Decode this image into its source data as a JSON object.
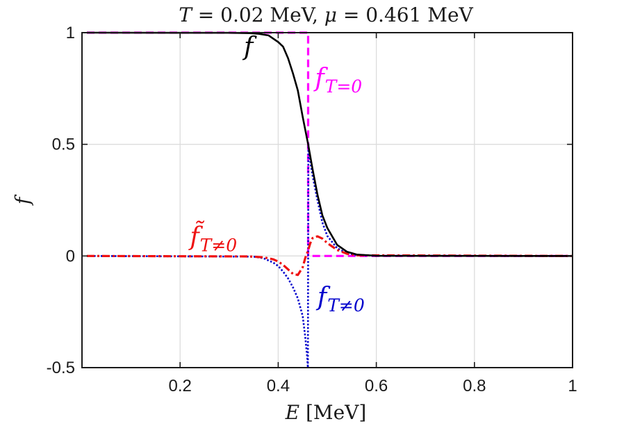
{
  "colors": {
    "f": "#000000",
    "f_T0": "#ff00ff",
    "f_Tneq0": "#0000cc",
    "ftilde_Tneq0": "#ee1111",
    "grid": "#dcdcdc",
    "axes": "#1a1a1a"
  },
  "chart_data": {
    "type": "line",
    "title": {
      "T_symbol": "T",
      "T_text": " = 0.02 MeV, ",
      "mu_symbol": "μ",
      "mu_text": " = 0.461 MeV"
    },
    "xlabel": {
      "symbol": "E",
      "unit": " [MeV]"
    },
    "ylabel": "f",
    "xlim": [
      0,
      1
    ],
    "ylim": [
      -0.5,
      1
    ],
    "grid": true,
    "xticks": [
      0.2,
      0.4,
      0.6,
      0.8,
      1
    ],
    "xtick_labels": [
      "0.2",
      "0.4",
      "0.6",
      "0.8",
      "1"
    ],
    "yticks": [
      -0.5,
      0,
      0.5,
      1
    ],
    "ytick_labels": [
      "-0.5",
      "0",
      "0.5",
      "1"
    ],
    "parameters": {
      "T": 0.02,
      "mu": 0.461
    },
    "annotations": [
      {
        "series": "f",
        "base": "f",
        "sub": "",
        "at": [
          0.33,
          0.9
        ]
      },
      {
        "series": "f_T0",
        "base": "f",
        "sub": "T=0",
        "at": [
          0.475,
          0.76
        ]
      },
      {
        "series": "ftilde_Tneq0",
        "base": "f̃",
        "sub": "T≠0",
        "at": [
          0.22,
          0.05
        ]
      },
      {
        "series": "f_Tneq0",
        "base": "f",
        "sub": "T≠0",
        "at": [
          0.48,
          -0.22
        ]
      }
    ],
    "series": [
      {
        "key": "f",
        "style": "solid",
        "x": [
          0.01,
          0.3,
          0.34,
          0.36,
          0.38,
          0.4,
          0.41,
          0.42,
          0.43,
          0.44,
          0.45,
          0.461,
          0.47,
          0.48,
          0.49,
          0.5,
          0.52,
          0.54,
          0.56,
          0.6,
          1.0
        ],
        "y": [
          1.0,
          0.9993,
          0.998,
          0.995,
          0.988,
          0.958,
          0.937,
          0.886,
          0.818,
          0.741,
          0.622,
          0.5,
          0.389,
          0.275,
          0.182,
          0.126,
          0.05,
          0.019,
          0.0065,
          0.0008,
          0.0
        ]
      },
      {
        "key": "f_T0",
        "style": "dashed",
        "x": [
          0.01,
          0.461,
          0.461,
          1.0
        ],
        "y": [
          1.0,
          1.0,
          0.0,
          0.0
        ]
      },
      {
        "key": "f_Tneq0",
        "style": "dotted",
        "x": [
          0.01,
          0.35,
          0.37,
          0.39,
          0.4,
          0.41,
          0.42,
          0.43,
          0.44,
          0.45,
          0.455,
          0.459,
          0.4605,
          0.4615,
          0.463,
          0.467,
          0.47,
          0.48,
          0.49,
          0.5,
          0.52,
          0.54,
          0.56,
          0.6,
          1.0
        ],
        "y": [
          0.0,
          -0.003,
          -0.01,
          -0.03,
          -0.045,
          -0.07,
          -0.1,
          -0.14,
          -0.19,
          -0.27,
          -0.36,
          -0.45,
          -0.5,
          0.5,
          0.46,
          0.4,
          0.36,
          0.25,
          0.15,
          0.09,
          0.035,
          0.012,
          0.004,
          0.0005,
          0.0
        ]
      },
      {
        "key": "ftilde_Tneq0",
        "style": "dashdot",
        "x": [
          0.01,
          0.34,
          0.37,
          0.39,
          0.4,
          0.41,
          0.42,
          0.43,
          0.44,
          0.45,
          0.455,
          0.461,
          0.465,
          0.47,
          0.48,
          0.49,
          0.5,
          0.52,
          0.54,
          0.56,
          1.0
        ],
        "y": [
          0.0,
          -0.002,
          -0.006,
          -0.015,
          -0.025,
          -0.04,
          -0.06,
          -0.08,
          -0.085,
          -0.05,
          -0.01,
          0.025,
          0.055,
          0.08,
          0.088,
          0.078,
          0.058,
          0.027,
          0.01,
          0.003,
          0.0
        ]
      }
    ]
  }
}
